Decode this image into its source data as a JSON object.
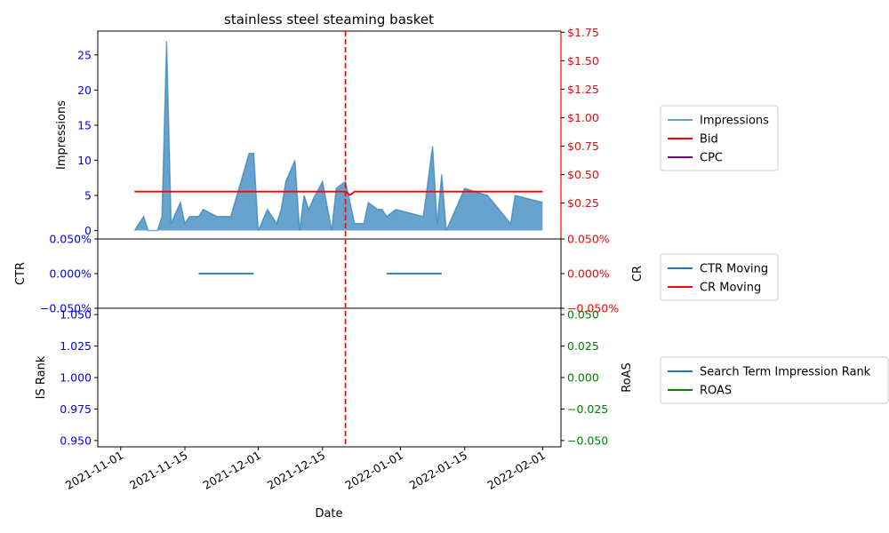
{
  "chart_data": {
    "type": "area",
    "title": "stainless steel steaming basket",
    "xlabel": "Date",
    "x_ticks": [
      "2021-11-01",
      "2021-11-15",
      "2021-12-01",
      "2021-12-15",
      "2022-01-01",
      "2022-01-15",
      "2022-02-01"
    ],
    "event_date": "2021-12-20",
    "colors": {
      "impressions": "#1f77b4",
      "bid": "#ff0000",
      "cpc": "#800080",
      "ctr": "#1f77b4",
      "cr": "#ff0000",
      "rank": "#1f77b4",
      "roas": "#008000",
      "left_tick": "#0000ff",
      "vline": "#ff0000"
    },
    "panels": [
      {
        "id": "top",
        "left_label": "Impressions",
        "right_label": "",
        "left_ylim": [
          -1.2,
          28.4
        ],
        "right_ylim": [
          -0.0655,
          1.76
        ],
        "left_ticks": [
          "0",
          "5",
          "10",
          "15",
          "20",
          "25"
        ],
        "left_tick_values": [
          0,
          5,
          10,
          15,
          20,
          25
        ],
        "right_ticks": [
          "$0.25",
          "$0.50",
          "$0.75",
          "$1.00",
          "$1.25",
          "$1.50",
          "$1.75"
        ],
        "right_tick_values": [
          0.25,
          0.5,
          0.75,
          1.0,
          1.25,
          1.5,
          1.75
        ],
        "right_tick_color": "#ff0000",
        "series": [
          {
            "name": "Impressions",
            "kind": "area",
            "color": "#1f77b4",
            "points": [
              [
                "2021-11-04",
                0
              ],
              [
                "2021-11-06",
                2
              ],
              [
                "2021-11-07",
                0
              ],
              [
                "2021-11-09",
                0
              ],
              [
                "2021-11-10",
                2
              ],
              [
                "2021-11-11",
                27
              ],
              [
                "2021-11-12",
                1
              ],
              [
                "2021-11-14",
                4
              ],
              [
                "2021-11-15",
                1
              ],
              [
                "2021-11-16",
                2
              ],
              [
                "2021-11-18",
                2
              ],
              [
                "2021-11-19",
                3
              ],
              [
                "2021-11-22",
                2
              ],
              [
                "2021-11-25",
                2
              ],
              [
                "2021-11-29",
                11
              ],
              [
                "2021-11-30",
                11
              ],
              [
                "2021-12-01",
                0
              ],
              [
                "2021-12-03",
                3
              ],
              [
                "2021-12-05",
                1
              ],
              [
                "2021-12-06",
                3
              ],
              [
                "2021-12-07",
                7
              ],
              [
                "2021-12-09",
                10
              ],
              [
                "2021-12-10",
                0
              ],
              [
                "2021-12-11",
                5
              ],
              [
                "2021-12-12",
                3
              ],
              [
                "2021-12-13",
                4.5
              ],
              [
                "2021-12-15",
                7
              ],
              [
                "2021-12-17",
                0
              ],
              [
                "2021-12-18",
                6
              ],
              [
                "2021-12-20",
                7
              ],
              [
                "2021-12-21",
                4
              ],
              [
                "2021-12-22",
                1
              ],
              [
                "2021-12-24",
                1
              ],
              [
                "2021-12-25",
                4
              ],
              [
                "2021-12-27",
                3
              ],
              [
                "2021-12-28",
                3
              ],
              [
                "2021-12-29",
                2
              ],
              [
                "2021-12-31",
                3
              ],
              [
                "2022-01-06",
                2
              ],
              [
                "2022-01-08",
                12
              ],
              [
                "2022-01-09",
                1
              ],
              [
                "2022-01-10",
                8
              ],
              [
                "2022-01-11",
                0
              ],
              [
                "2022-01-15",
                6
              ],
              [
                "2022-01-20",
                5
              ],
              [
                "2022-01-25",
                1
              ],
              [
                "2022-01-26",
                5
              ],
              [
                "2022-02-01",
                4
              ]
            ]
          },
          {
            "name": "Bid",
            "kind": "line",
            "axis": "right",
            "color": "#ff0000",
            "points": [
              [
                "2021-11-04",
                0.35
              ],
              [
                "2021-12-20",
                0.35
              ],
              [
                "2021-12-21",
                0.32
              ],
              [
                "2021-12-22",
                0.35
              ],
              [
                "2022-02-01",
                0.35
              ]
            ]
          },
          {
            "name": "CPC",
            "kind": "line",
            "axis": "right",
            "color": "#800080",
            "points": []
          }
        ]
      },
      {
        "id": "middle",
        "left_label": "CTR",
        "right_label": "CR",
        "left_ylim": [
          -0.05,
          0.05
        ],
        "right_ylim": [
          -0.05,
          0.05
        ],
        "left_ticks": [
          "−0.050%",
          "0.000%",
          "0.050%"
        ],
        "left_tick_values": [
          -0.05,
          0,
          0.05
        ],
        "right_ticks": [
          "−0.050%",
          "0.000%",
          "0.050%"
        ],
        "right_tick_values": [
          -0.05,
          0,
          0.05
        ],
        "right_tick_color": "#ff0000",
        "series": [
          {
            "name": "CTR Moving",
            "kind": "line",
            "color": "#1f77b4",
            "segments": [
              [
                [
                  "2021-11-18",
                  0
                ],
                [
                  "2021-11-30",
                  0
                ]
              ],
              [
                [
                  "2021-12-29",
                  0
                ],
                [
                  "2022-01-10",
                  0
                ]
              ]
            ]
          },
          {
            "name": "CR Moving",
            "kind": "line",
            "axis": "right",
            "color": "#ff0000",
            "segments": []
          }
        ]
      },
      {
        "id": "bottom",
        "left_label": "IS Rank",
        "right_label": "RoAS",
        "left_ylim": [
          0.945,
          1.055
        ],
        "right_ylim": [
          -0.055,
          0.055
        ],
        "left_ticks": [
          "0.950",
          "0.975",
          "1.000",
          "1.025",
          "1.050"
        ],
        "left_tick_values": [
          0.95,
          0.975,
          1.0,
          1.025,
          1.05
        ],
        "right_ticks": [
          "−0.050",
          "−0.025",
          "0.000",
          "0.025",
          "0.050"
        ],
        "right_tick_values": [
          -0.05,
          -0.025,
          0,
          0.025,
          0.05
        ],
        "right_tick_color": "#008000",
        "series": [
          {
            "name": "Search Term Impression Rank",
            "kind": "line",
            "color": "#1f77b4",
            "points": []
          },
          {
            "name": "ROAS",
            "kind": "line",
            "axis": "right",
            "color": "#008000",
            "points": []
          }
        ]
      }
    ],
    "legends": [
      {
        "panel": "top",
        "placement": "right",
        "entries": [
          "Impressions",
          "Bid",
          "CPC"
        ]
      },
      {
        "panel": "middle",
        "placement": "right",
        "entries": [
          "CTR Moving",
          "CR Moving"
        ]
      },
      {
        "panel": "bottom",
        "placement": "right",
        "entries": [
          "Search Term Impression Rank",
          "ROAS"
        ]
      }
    ]
  }
}
